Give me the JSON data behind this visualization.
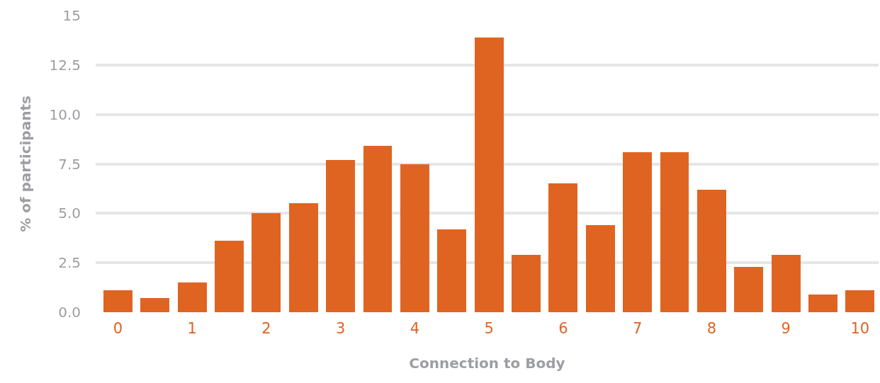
{
  "chart_data": {
    "type": "bar",
    "xlabel": "Connection to Body",
    "ylabel": "% of participants",
    "x": [
      0,
      0.5,
      1,
      1.5,
      2,
      2.5,
      3,
      3.5,
      4,
      4.5,
      5,
      5.5,
      6,
      6.5,
      7,
      7.5,
      8,
      8.5,
      9,
      9.5,
      10
    ],
    "values": [
      1.1,
      0.7,
      1.5,
      3.6,
      5.0,
      5.5,
      7.7,
      8.4,
      7.5,
      4.2,
      13.9,
      2.9,
      6.5,
      4.4,
      8.1,
      8.1,
      6.2,
      2.3,
      2.9,
      0.9,
      1.1
    ],
    "color": "#e06421",
    "xlim": [
      -0.3,
      10.25
    ],
    "xticks": [
      0,
      1,
      2,
      3,
      4,
      5,
      6,
      7,
      8,
      9,
      10
    ],
    "ylim": [
      0,
      15
    ],
    "yticks": [
      {
        "value": 0,
        "label": "0.0"
      },
      {
        "value": 2.5,
        "label": "2.5"
      },
      {
        "value": 5,
        "label": "5.0"
      },
      {
        "value": 7.5,
        "label": "7.5"
      },
      {
        "value": 10,
        "label": "10.0"
      },
      {
        "value": 12.5,
        "label": "12.5"
      },
      15
    ],
    "grid": "y"
  }
}
